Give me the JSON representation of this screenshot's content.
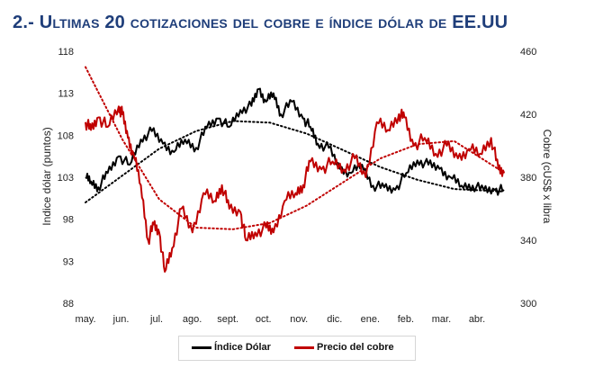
{
  "title": "2.- Ultimas 20 cotizaciones del cobre e índice dólar de EE.UU",
  "colors": {
    "title": "#1f3e7a",
    "dollar": "#000000",
    "copper": "#c00000"
  },
  "chart_data": {
    "type": "line",
    "ylabel": "Indice dólar (puntos)",
    "y2label": "Cobre (cUS$ x libra",
    "ylim": [
      88,
      118
    ],
    "y2lim": [
      300,
      460
    ],
    "yticks": [
      "88",
      "93",
      "98",
      "103",
      "108",
      "113",
      "118"
    ],
    "y2ticks": [
      "300",
      "340",
      "380",
      "420",
      "460"
    ],
    "categories": [
      "may.",
      "jun.",
      "jul.",
      "ago.",
      "sept.",
      "oct.",
      "nov.",
      "dic.",
      "ene.",
      "feb.",
      "mar.",
      "abr."
    ],
    "legend": {
      "position": "bottom"
    },
    "series": [
      {
        "name": "Índice Dólar",
        "axis": "left",
        "x": [
          0.0,
          0.15,
          0.35,
          0.6,
          0.9,
          1.2,
          1.5,
          1.8,
          2.1,
          2.4,
          2.7,
          3.0,
          3.3,
          3.6,
          3.9,
          4.2,
          4.5,
          4.7,
          4.9,
          5.1,
          5.3,
          5.6,
          5.9,
          6.1,
          6.3,
          6.6,
          6.9,
          7.2,
          7.5,
          7.8,
          8.1,
          8.4,
          8.7,
          9.0,
          9.3,
          9.6,
          9.9,
          10.2,
          10.5,
          10.8,
          11.1,
          11.35
        ],
        "values": [
          103.0,
          102.5,
          101.8,
          103.5,
          105.5,
          104.5,
          107.5,
          108.5,
          107.0,
          106.0,
          107.5,
          106.5,
          109.0,
          110.0,
          109.0,
          111.0,
          111.5,
          113.5,
          112.0,
          113.0,
          110.5,
          112.0,
          110.0,
          109.0,
          107.0,
          106.5,
          104.0,
          103.5,
          104.5,
          102.0,
          101.8,
          101.5,
          103.5,
          105.0,
          104.5,
          104.0,
          103.0,
          102.0,
          102.0,
          101.5,
          101.5,
          101.5
        ]
      },
      {
        "name": "Precio del cobre",
        "axis": "right",
        "x": [
          0.0,
          0.15,
          0.35,
          0.6,
          0.9,
          1.0,
          1.15,
          1.3,
          1.5,
          1.7,
          1.85,
          2.0,
          2.15,
          2.35,
          2.6,
          2.9,
          3.2,
          3.5,
          3.7,
          3.9,
          4.2,
          4.35,
          4.6,
          4.9,
          5.1,
          5.4,
          5.7,
          5.9,
          6.1,
          6.4,
          6.7,
          7.0,
          7.3,
          7.6,
          7.9,
          8.2,
          8.5,
          8.65,
          8.9,
          9.2,
          9.5,
          9.8,
          10.1,
          10.4,
          10.7,
          11.0,
          11.2,
          11.35
        ],
        "values": [
          415,
          410,
          418,
          412,
          425,
          420,
          405,
          395,
          375,
          340,
          350,
          345,
          320,
          335,
          360,
          345,
          370,
          365,
          375,
          360,
          358,
          340,
          345,
          348,
          345,
          365,
          370,
          375,
          390,
          385,
          390,
          385,
          392,
          380,
          415,
          410,
          420,
          418,
          400,
          405,
          395,
          400,
          392,
          398,
          395,
          405,
          385,
          383
        ]
      }
    ],
    "trendlines": [
      {
        "axis": "left",
        "color": "#000000",
        "x": [
          0,
          1,
          2,
          3,
          4,
          5,
          6,
          7,
          8,
          9,
          10,
          11.35
        ],
        "values": [
          100.0,
          103.2,
          106.4,
          108.5,
          109.7,
          109.5,
          108.2,
          106.2,
          104.2,
          102.7,
          101.6,
          101.3
        ]
      },
      {
        "axis": "right",
        "color": "#c00000",
        "x": [
          0,
          1,
          2,
          3,
          4,
          5,
          6,
          7,
          8,
          9,
          10,
          11.35
        ],
        "values": [
          450,
          404,
          366,
          348,
          347,
          351,
          362,
          377,
          392,
          401,
          403,
          383
        ]
      }
    ]
  }
}
